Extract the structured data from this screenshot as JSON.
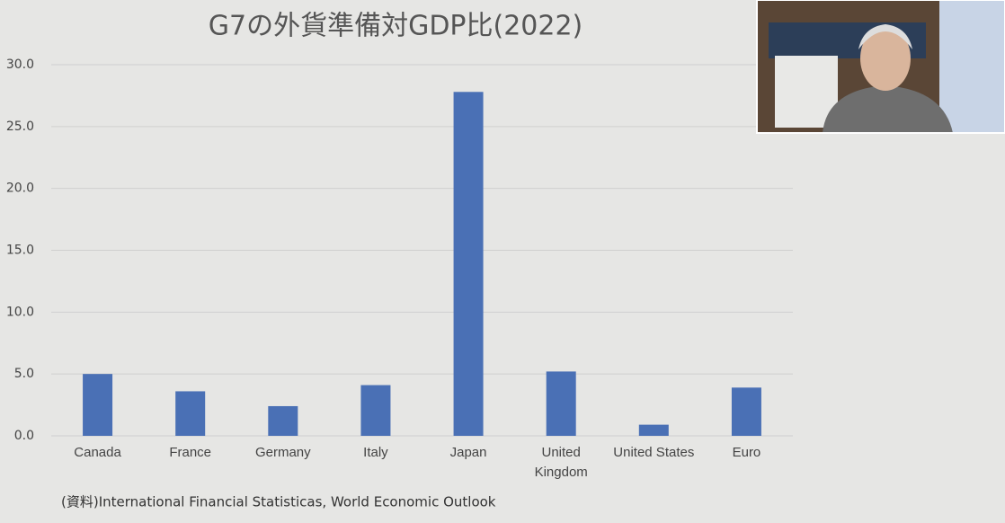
{
  "chart_data": {
    "type": "bar",
    "title": "G7の外貨準備対GDP比(2022)",
    "categories": [
      "Canada",
      "France",
      "Germany",
      "Italy",
      "Japan",
      "United Kingdom",
      "United States",
      "Euro"
    ],
    "values": [
      5.0,
      3.6,
      2.4,
      4.1,
      27.8,
      5.2,
      0.9,
      3.9
    ],
    "color": "#4a70b5",
    "ylim": [
      0,
      30
    ],
    "yticks": [
      {
        "value": 0,
        "label": "0.0"
      },
      {
        "value": 5,
        "label": "5.0"
      },
      {
        "value": 10,
        "label": "10.0"
      },
      {
        "value": 15,
        "label": "15.0"
      },
      {
        "value": 20,
        "label": "20.0"
      },
      {
        "value": 25,
        "label": "25.0"
      },
      {
        "value": 30,
        "label": "30.0"
      }
    ],
    "grid": true,
    "source": "(資料)International Financial Statisticas, World Economic Outlook"
  }
}
